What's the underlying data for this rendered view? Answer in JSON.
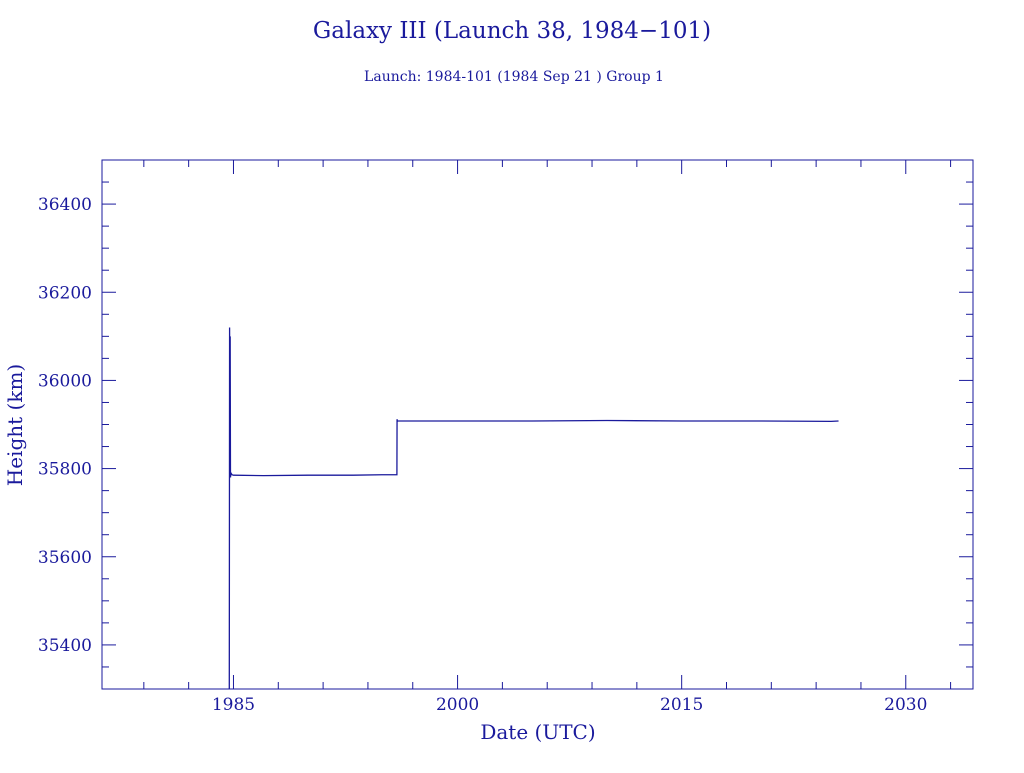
{
  "chart_data": {
    "type": "line",
    "title": "Galaxy III (Launch 38, 1984−101)",
    "subtitle": "Launch: 1984-101  (1984 Sep 21 )  Group 1",
    "xlabel": "Date (UTC)",
    "ylabel": "Height (km)",
    "xlim": [
      1976.2,
      2034.5
    ],
    "ylim": [
      35300,
      36500
    ],
    "x_ticks": [
      1985,
      2000,
      2015,
      2030
    ],
    "y_ticks": [
      35400,
      35600,
      35800,
      36000,
      36200,
      36400
    ],
    "grid": false,
    "legend": "none",
    "color": "#1a1a9c",
    "series": [
      {
        "x": [
          1984.72,
          1984.74,
          1984.76,
          1984.78,
          1984.8,
          1984.83,
          1984.9,
          1985.0,
          1987.0,
          1990.0,
          1993.0,
          1995.0,
          1995.94,
          1995.95,
          1995.97,
          1996.0,
          2000.0,
          2005.0,
          2010.0,
          2015.0,
          2020.0,
          2025.0,
          2025.5
        ],
        "y": [
          35300,
          36120,
          35900,
          36100,
          35780,
          35790,
          35786,
          35785,
          35784,
          35785,
          35785,
          35786,
          35786,
          35912,
          35907,
          35908,
          35908,
          35908,
          35909,
          35908,
          35908,
          35907,
          35908
        ]
      }
    ]
  }
}
